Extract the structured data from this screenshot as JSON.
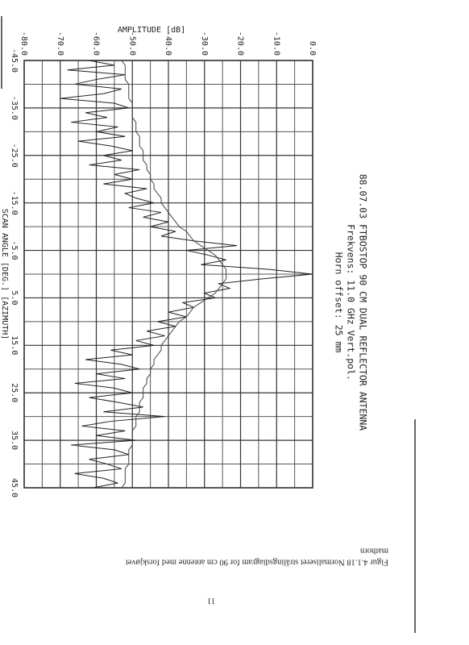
{
  "chart_data": {
    "type": "line",
    "title": "88.07.03   FTBOSTOP 90 CM DUAL REFLECTOR ANTENNA",
    "subtitle": [
      "Frekvens:  11.0 GHz  Vert.pol.",
      "Horn offset: 25 mm"
    ],
    "x_label": "SCAN ANGLE [DEG.]  [AZIMUTH]",
    "y_label": "AMPLITUDE [dB]",
    "x": [
      -45,
      -44,
      -43,
      -42,
      -41,
      -40,
      -39,
      -38,
      -37,
      -36,
      -35,
      -34,
      -33,
      -32,
      -31,
      -30,
      -29,
      -28,
      -27,
      -26,
      -25,
      -24,
      -23,
      -22,
      -21,
      -20,
      -19,
      -18,
      -17,
      -16,
      -15,
      -14,
      -13,
      -12,
      -11,
      -10,
      -9,
      -8,
      -7,
      -6,
      -5,
      -4,
      -3,
      -2,
      -1,
      0,
      1,
      2,
      3,
      4,
      5,
      6,
      7,
      8,
      9,
      10,
      11,
      12,
      13,
      14,
      15,
      16,
      17,
      18,
      19,
      20,
      21,
      22,
      23,
      24,
      25,
      26,
      27,
      28,
      29,
      30,
      31,
      32,
      33,
      34,
      35,
      36,
      37,
      38,
      39,
      40,
      41,
      42,
      43,
      44,
      45
    ],
    "series": [
      {
        "color": "#222222",
        "values": [
          -62,
          -55,
          -68,
          -52,
          -60,
          -66,
          -53,
          -58,
          -70,
          -55,
          -51,
          -63,
          -57,
          -67,
          -54,
          -60,
          -52,
          -65,
          -56,
          -50,
          -58,
          -53,
          -62,
          -48,
          -55,
          -50,
          -58,
          -46,
          -52,
          -49,
          -44,
          -51,
          -42,
          -47,
          -40,
          -45,
          -38,
          -42,
          -33,
          -21,
          -35,
          -29,
          -24,
          -31,
          -12,
          0,
          -14,
          -26,
          -23,
          -30,
          -27,
          -36,
          -33,
          -40,
          -35,
          -43,
          -38,
          -46,
          -41,
          -49,
          -44,
          -56,
          -50,
          -63,
          -53,
          -48,
          -60,
          -52,
          -66,
          -55,
          -50,
          -62,
          -54,
          -47,
          -58,
          -41,
          -56,
          -64,
          -52,
          -60,
          -49,
          -67,
          -55,
          -51,
          -62,
          -57,
          -53,
          -66,
          -58,
          -54,
          -61
        ]
      },
      {
        "color": "#444444",
        "values": [
          -53,
          -52,
          -52,
          -52,
          -52,
          -51,
          -51,
          -51,
          -51,
          -50,
          -50,
          -50,
          -50,
          -49,
          -49,
          -49,
          -48,
          -48,
          -48,
          -47,
          -47,
          -47,
          -46,
          -46,
          -45,
          -45,
          -44,
          -44,
          -43,
          -42,
          -42,
          -41,
          -40,
          -39,
          -38,
          -37,
          -35,
          -34,
          -33,
          -31,
          -29,
          -27,
          -26,
          -25,
          -24,
          -24,
          -24,
          -25,
          -26,
          -27,
          -29,
          -31,
          -33,
          -34,
          -35,
          -37,
          -38,
          -39,
          -40,
          -41,
          -42,
          -42,
          -43,
          -44,
          -44,
          -45,
          -45,
          -46,
          -46,
          -47,
          -47,
          -47,
          -48,
          -48,
          -48,
          -49,
          -49,
          -49,
          -50,
          -50,
          -50,
          -50,
          -51,
          -51,
          -51,
          -51,
          -52,
          -52,
          -52,
          -52,
          -53
        ]
      }
    ],
    "xlim": [
      -45,
      45
    ],
    "xticks": [
      {
        "value": -45,
        "label": "-45.0"
      },
      {
        "value": -35,
        "label": "-35.0"
      },
      {
        "value": -25,
        "label": "-25.0"
      },
      {
        "value": -15,
        "label": "-15.0"
      },
      {
        "value": -5,
        "label": "-5.0"
      },
      {
        "value": 5,
        "label": "5.0"
      },
      {
        "value": 15,
        "label": "15.0"
      },
      {
        "value": 25,
        "label": "25.0"
      },
      {
        "value": 35,
        "label": "35.0"
      },
      {
        "value": 45,
        "label": "45.0"
      }
    ],
    "xminor": [
      -40,
      -30,
      -20,
      -10,
      0,
      10,
      20,
      30,
      40
    ],
    "ylim": [
      -80,
      0
    ],
    "yticks": [
      {
        "value": -80,
        "label": "-80.0"
      },
      {
        "value": -70,
        "label": "-70.0"
      },
      {
        "value": -60,
        "label": "-60.0"
      },
      {
        "value": -50,
        "label": "-50.0"
      },
      {
        "value": -40,
        "label": "-40.0"
      },
      {
        "value": -30,
        "label": "-30.0"
      },
      {
        "value": -20,
        "label": "-20.0"
      },
      {
        "value": -10,
        "label": "-10.0"
      },
      {
        "value": 0,
        "label": "0.0"
      }
    ],
    "yminor": [
      -75,
      -65,
      -55,
      -45,
      -35,
      -25,
      -15,
      -5
    ],
    "grid": true
  },
  "caption": [
    "Figur 4.1.18 Normaliseret strålingsdiagram for 90 cm antenne med forskjøvet",
    "mathorn"
  ],
  "page_number": "11"
}
